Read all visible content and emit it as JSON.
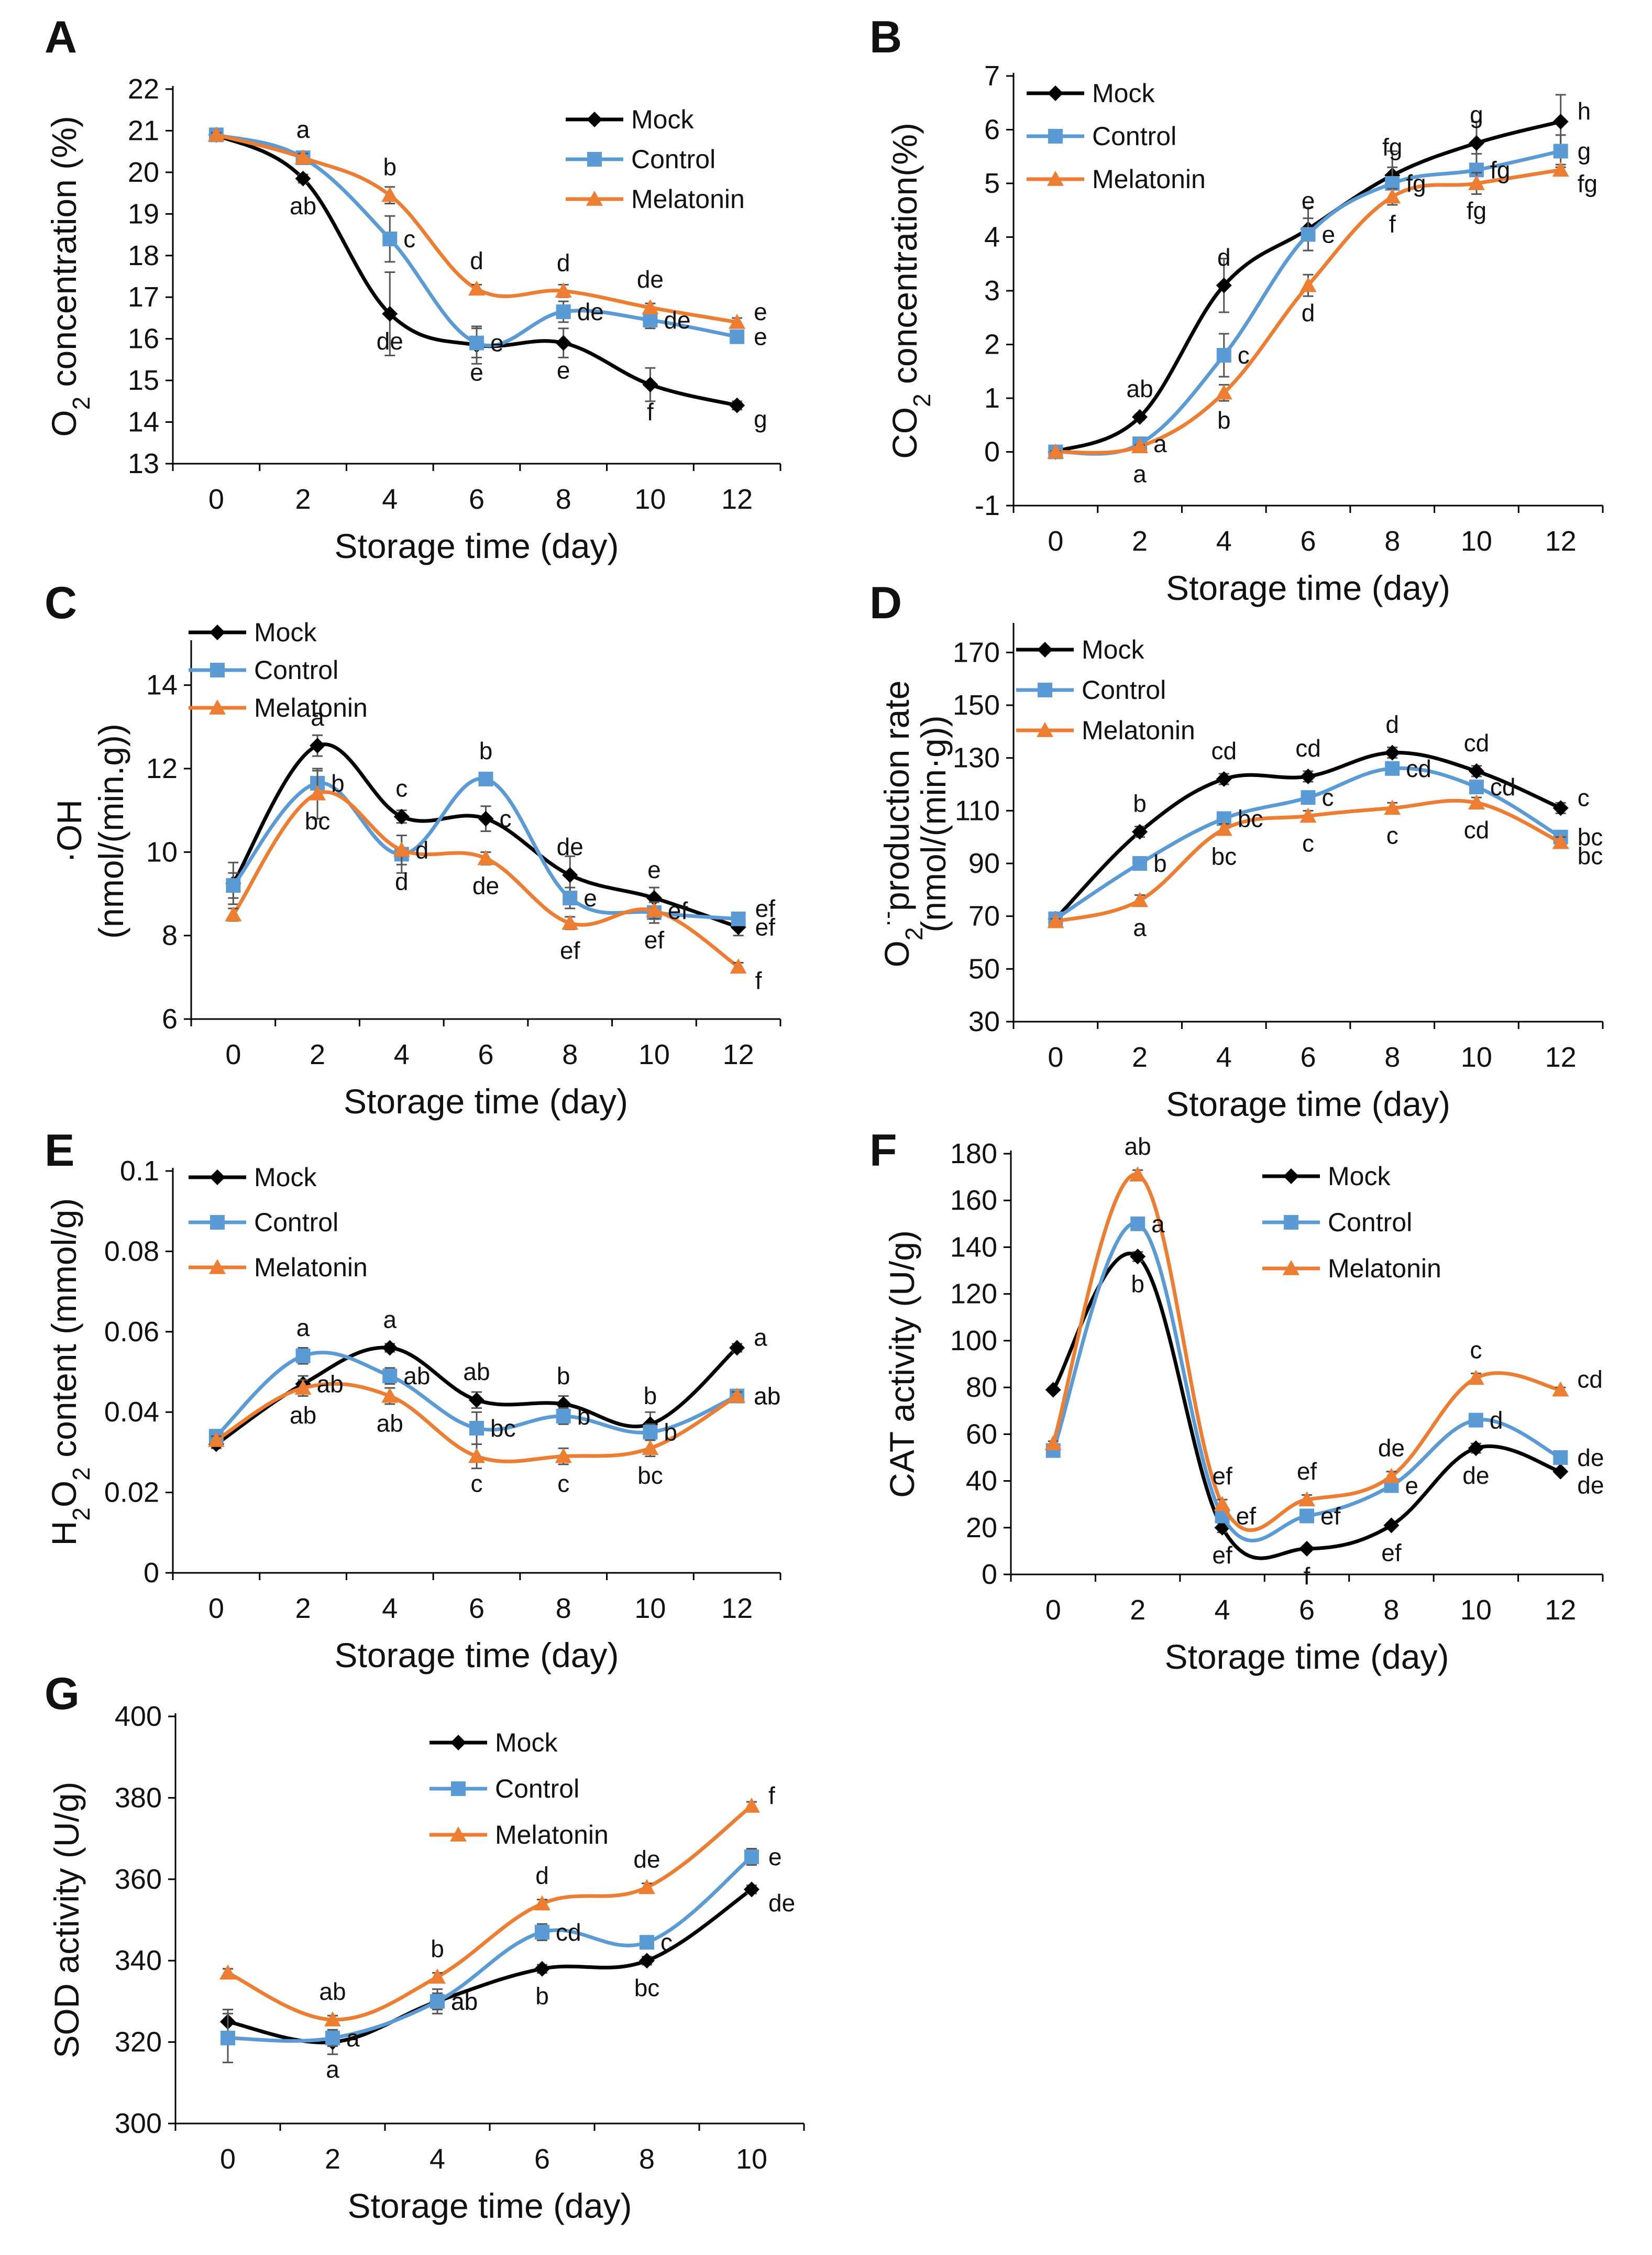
{
  "figure": {
    "background": "#ffffff",
    "series_colors": {
      "Mock": "#000000",
      "Control": "#5b9bd5",
      "Melatonin": "#ed7d31"
    }
  },
  "chart_data": [
    {
      "panel": "A",
      "type": "line",
      "xlabel": "Storage time (day)",
      "ylabel": "O2 concentration (%)",
      "ylabel_parts": [
        {
          "t": "O",
          "sub": false
        },
        {
          "t": "2",
          "sub": true
        },
        {
          "t": " concentration (%)",
          "sub": false
        }
      ],
      "x": [
        0,
        2,
        4,
        6,
        8,
        10,
        12
      ],
      "x_ticks": [
        "0",
        "2",
        "4",
        "6",
        "8",
        "10",
        "12"
      ],
      "ylim": [
        13,
        22
      ],
      "y_ticks": [
        "13",
        "14",
        "15",
        "16",
        "17",
        "18",
        "19",
        "20",
        "21",
        "22"
      ],
      "legend": [
        "Mock",
        "Control",
        "Melatonin"
      ],
      "series": [
        {
          "name": "Mock",
          "marker": "diamond",
          "values": [
            20.9,
            19.85,
            16.6,
            15.85,
            15.9,
            14.9,
            14.4
          ],
          "errors": [
            0.05,
            0.1,
            1.0,
            0.45,
            0.35,
            0.4,
            0.1
          ],
          "labels": [
            "",
            "ab",
            "de",
            "e",
            "e",
            "f",
            "g"
          ]
        },
        {
          "name": "Control",
          "marker": "square",
          "values": [
            20.9,
            20.35,
            18.4,
            15.9,
            16.65,
            16.45,
            16.05
          ],
          "errors": [
            0.05,
            0.1,
            0.55,
            0.35,
            0.25,
            0.2,
            0.15
          ],
          "labels": [
            "",
            "a",
            "c",
            "e",
            "de",
            "de",
            "e"
          ]
        },
        {
          "name": "Melatonin",
          "marker": "triangle",
          "values": [
            20.9,
            20.35,
            19.45,
            17.2,
            17.15,
            16.75,
            16.4
          ],
          "errors": [
            0.05,
            0.1,
            0.2,
            0.1,
            0.15,
            0.1,
            0.1
          ],
          "labels": [
            "",
            "a",
            "b",
            "d",
            "d",
            "de",
            "e"
          ]
        }
      ]
    },
    {
      "panel": "B",
      "type": "line",
      "xlabel": "Storage time (day)",
      "ylabel": "CO2 concentration(%)",
      "ylabel_parts": [
        {
          "t": "CO",
          "sub": false
        },
        {
          "t": "2",
          "sub": true
        },
        {
          "t": " concentration(%)",
          "sub": false
        }
      ],
      "x": [
        0,
        2,
        4,
        6,
        8,
        10,
        12
      ],
      "x_ticks": [
        "0",
        "2",
        "4",
        "6",
        "8",
        "10",
        "12"
      ],
      "ylim": [
        -1,
        7
      ],
      "y_ticks": [
        "-1",
        "0",
        "1",
        "2",
        "3",
        "4",
        "5",
        "6",
        "7"
      ],
      "legend": [
        "Mock",
        "Control",
        "Melatonin"
      ],
      "series": [
        {
          "name": "Mock",
          "marker": "diamond",
          "values": [
            0,
            0.65,
            3.1,
            4.15,
            5.15,
            5.75,
            6.15
          ],
          "errors": [
            0.02,
            0.05,
            0.5,
            0.4,
            0.45,
            0.4,
            0.5
          ],
          "labels": [
            "",
            "ab",
            "d",
            "e",
            "fg",
            "g",
            "h"
          ]
        },
        {
          "name": "Control",
          "marker": "square",
          "values": [
            0,
            0.15,
            1.8,
            4.05,
            5.0,
            5.25,
            5.6
          ],
          "errors": [
            0.02,
            0.05,
            0.4,
            0.3,
            0.3,
            0.3,
            0.3
          ],
          "labels": [
            "",
            "a",
            "c",
            "e",
            "fg",
            "fg",
            "g"
          ]
        },
        {
          "name": "Melatonin",
          "marker": "triangle",
          "values": [
            0,
            0.1,
            1.1,
            3.1,
            4.75,
            5.0,
            5.25
          ],
          "errors": [
            0.02,
            0.03,
            0.15,
            0.2,
            0.15,
            0.2,
            0.1
          ],
          "labels": [
            "",
            "a",
            "b",
            "d",
            "f",
            "fg",
            "fg"
          ]
        }
      ]
    },
    {
      "panel": "C",
      "type": "line",
      "xlabel": "Storage time (day)",
      "ylabel": "·OH (nmol/(min.g))",
      "ylabel_lines": [
        "·OH",
        "(nmol/(min.g))"
      ],
      "x": [
        0,
        2,
        4,
        6,
        8,
        10,
        12
      ],
      "x_ticks": [
        "0",
        "2",
        "4",
        "6",
        "8",
        "10",
        "12"
      ],
      "ylim": [
        6,
        15
      ],
      "y_ticks": [
        "6",
        "8",
        "10",
        "12",
        "14"
      ],
      "legend": [
        "Mock",
        "Control",
        "Melatonin"
      ],
      "series": [
        {
          "name": "Mock",
          "marker": "diamond",
          "values": [
            9.25,
            12.55,
            10.85,
            10.8,
            9.45,
            8.9,
            8.2
          ],
          "errors": [
            0.5,
            0.25,
            0.15,
            0.3,
            0.45,
            0.25,
            0.2
          ],
          "labels": [
            "",
            "a",
            "c",
            "c",
            "de",
            "e",
            "ef"
          ]
        },
        {
          "name": "Control",
          "marker": "square",
          "values": [
            9.2,
            11.65,
            9.95,
            11.75,
            8.9,
            8.55,
            8.4
          ],
          "errors": [
            0.3,
            0.3,
            0.45,
            0.15,
            0.25,
            0.25,
            0.15
          ],
          "labels": [
            "",
            "b",
            "d",
            "b",
            "e",
            "ef",
            "ef"
          ]
        },
        {
          "name": "Melatonin",
          "marker": "triangle",
          "values": [
            8.5,
            11.4,
            10.05,
            9.85,
            8.3,
            8.6,
            7.25
          ],
          "errors": [
            0.15,
            0.6,
            0.35,
            0.15,
            0.15,
            0.2,
            0.1
          ],
          "labels": [
            "",
            "bc",
            "d",
            "de",
            "ef",
            "ef",
            "f"
          ]
        }
      ]
    },
    {
      "panel": "D",
      "type": "line",
      "xlabel": "Storage time (day)",
      "ylabel": "O2·- production rate (nmol/(min·g))",
      "ylabel_parts": [
        {
          "t": "O",
          "sub": false
        },
        {
          "t": "2",
          "sub": true
        },
        {
          "t": "·-",
          "sup": true
        },
        {
          "t": "production rate",
          "sub": false
        }
      ],
      "ylabel_line2": "(nmol/(min·g))",
      "x": [
        0,
        2,
        4,
        6,
        8,
        10,
        12
      ],
      "x_ticks": [
        "0",
        "2",
        "4",
        "6",
        "8",
        "10",
        "12"
      ],
      "ylim": [
        30,
        180
      ],
      "y_ticks": [
        "30",
        "50",
        "70",
        "90",
        "110",
        "130",
        "150",
        "170"
      ],
      "legend": [
        "Mock",
        "Control",
        "Melatonin"
      ],
      "series": [
        {
          "name": "Mock",
          "marker": "diamond",
          "values": [
            69,
            102,
            122,
            123,
            132,
            125,
            111
          ],
          "errors": [
            1,
            2,
            2,
            2,
            2,
            2,
            2
          ],
          "labels": [
            "",
            "b",
            "cd",
            "cd",
            "d",
            "cd",
            "c"
          ]
        },
        {
          "name": "Control",
          "marker": "square",
          "values": [
            69,
            90,
            107,
            115,
            126,
            119,
            100
          ],
          "errors": [
            1,
            2,
            2,
            2,
            2,
            2,
            2
          ],
          "labels": [
            "",
            "b",
            "bc",
            "c",
            "cd",
            "cd",
            "bc"
          ]
        },
        {
          "name": "Melatonin",
          "marker": "triangle",
          "values": [
            68,
            76,
            103,
            108,
            111,
            113,
            98
          ],
          "errors": [
            1,
            2,
            2,
            2,
            2,
            2,
            2
          ],
          "labels": [
            "",
            "a",
            "bc",
            "c",
            "c",
            "cd",
            "bc"
          ]
        }
      ]
    },
    {
      "panel": "E",
      "type": "line",
      "xlabel": "Storage time (day)",
      "ylabel": "H2O2 content (mmol/g)",
      "ylabel_parts": [
        {
          "t": "H",
          "sub": false
        },
        {
          "t": "2",
          "sub": true
        },
        {
          "t": "O",
          "sub": false
        },
        {
          "t": "2",
          "sub": true
        },
        {
          "t": " content (mmol/g)",
          "sub": false
        }
      ],
      "x": [
        0,
        2,
        4,
        6,
        8,
        10,
        12
      ],
      "x_ticks": [
        "0",
        "2",
        "4",
        "6",
        "8",
        "10",
        "12"
      ],
      "ylim": [
        0,
        0.1
      ],
      "y_ticks": [
        "0",
        "0.02",
        "0.04",
        "0.06",
        "0.08",
        "0.1"
      ],
      "legend": [
        "Mock",
        "Control",
        "Melatonin"
      ],
      "series": [
        {
          "name": "Mock",
          "marker": "diamond",
          "values": [
            0.032,
            0.047,
            0.056,
            0.043,
            0.042,
            0.037,
            0.056
          ],
          "errors": [
            0.001,
            0.002,
            0.001,
            0.002,
            0.002,
            0.003,
            0.001
          ],
          "labels": [
            "",
            "ab",
            "a",
            "ab",
            "b",
            "b",
            "a"
          ]
        },
        {
          "name": "Control",
          "marker": "square",
          "values": [
            0.034,
            0.054,
            0.049,
            0.036,
            0.039,
            0.035,
            0.044
          ],
          "errors": [
            0.001,
            0.002,
            0.002,
            0.004,
            0.002,
            0.002,
            0.001
          ],
          "labels": [
            "",
            "a",
            "ab",
            "bc",
            "b",
            "b",
            "ab"
          ]
        },
        {
          "name": "Melatonin",
          "marker": "triangle",
          "values": [
            0.033,
            0.046,
            0.044,
            0.029,
            0.029,
            0.031,
            0.044
          ],
          "errors": [
            0.001,
            0.002,
            0.002,
            0.003,
            0.002,
            0.002,
            0.001
          ],
          "labels": [
            "",
            "ab",
            "ab",
            "c",
            "c",
            "bc",
            "ab"
          ]
        }
      ]
    },
    {
      "panel": "F",
      "type": "line",
      "xlabel": "Storage time (day)",
      "ylabel": "CAT activity (U/g)",
      "x": [
        0,
        2,
        4,
        6,
        8,
        10,
        12
      ],
      "x_ticks": [
        "0",
        "2",
        "4",
        "6",
        "8",
        "10",
        "12"
      ],
      "ylim": [
        0,
        180
      ],
      "y_ticks": [
        "0",
        "20",
        "40",
        "60",
        "80",
        "100",
        "120",
        "140",
        "160",
        "180"
      ],
      "legend": [
        "Mock",
        "Control",
        "Melatonin"
      ],
      "series": [
        {
          "name": "Mock",
          "marker": "diamond",
          "values": [
            79,
            136,
            20,
            11,
            21,
            54,
            44
          ],
          "errors": [
            1,
            2,
            2,
            1,
            1,
            2,
            1
          ],
          "labels": [
            "",
            "b",
            "ef",
            "f",
            "ef",
            "de",
            "de"
          ]
        },
        {
          "name": "Control",
          "marker": "square",
          "values": [
            53,
            150,
            25,
            25,
            38,
            66,
            50
          ],
          "errors": [
            1,
            2,
            2,
            2,
            2,
            2,
            1
          ],
          "labels": [
            "",
            "a",
            "ef",
            "ef",
            "e",
            "d",
            "de"
          ]
        },
        {
          "name": "Melatonin",
          "marker": "triangle",
          "values": [
            56,
            171,
            30,
            32,
            42,
            84,
            79
          ],
          "errors": [
            1,
            2,
            2,
            2,
            2,
            2,
            1
          ],
          "labels": [
            "",
            "ab",
            "ef",
            "ef",
            "de",
            "c",
            "cd"
          ]
        }
      ]
    },
    {
      "panel": "G",
      "type": "line",
      "xlabel": "Storage time (day)",
      "ylabel": "SOD activity (U/g)",
      "x": [
        0,
        2,
        4,
        6,
        8,
        10
      ],
      "x_ticks": [
        "0",
        "2",
        "4",
        "6",
        "8",
        "10"
      ],
      "ylim": [
        300,
        400
      ],
      "y_ticks": [
        "300",
        "320",
        "340",
        "360",
        "380",
        "400"
      ],
      "legend": [
        "Mock",
        "Control",
        "Melatonin"
      ],
      "series": [
        {
          "name": "Mock",
          "marker": "diamond",
          "values": [
            325,
            320,
            330,
            338,
            340,
            357.5
          ],
          "errors": [
            3,
            3,
            2,
            1,
            1,
            1
          ],
          "labels": [
            "",
            "a",
            "ab",
            "b",
            "bc",
            "de"
          ]
        },
        {
          "name": "Control",
          "marker": "square",
          "values": [
            321,
            321,
            330,
            347,
            344.5,
            365.5
          ],
          "errors": [
            6,
            2,
            3,
            2,
            1,
            2
          ],
          "labels": [
            "",
            "a",
            "ab",
            "cd",
            "c",
            "e"
          ]
        },
        {
          "name": "Melatonin",
          "marker": "triangle",
          "values": [
            337,
            325.5,
            336,
            354,
            358,
            378
          ],
          "errors": [
            1,
            1,
            1,
            1,
            1,
            1
          ],
          "labels": [
            "",
            "ab",
            "b",
            "d",
            "de",
            "f"
          ]
        }
      ]
    }
  ]
}
